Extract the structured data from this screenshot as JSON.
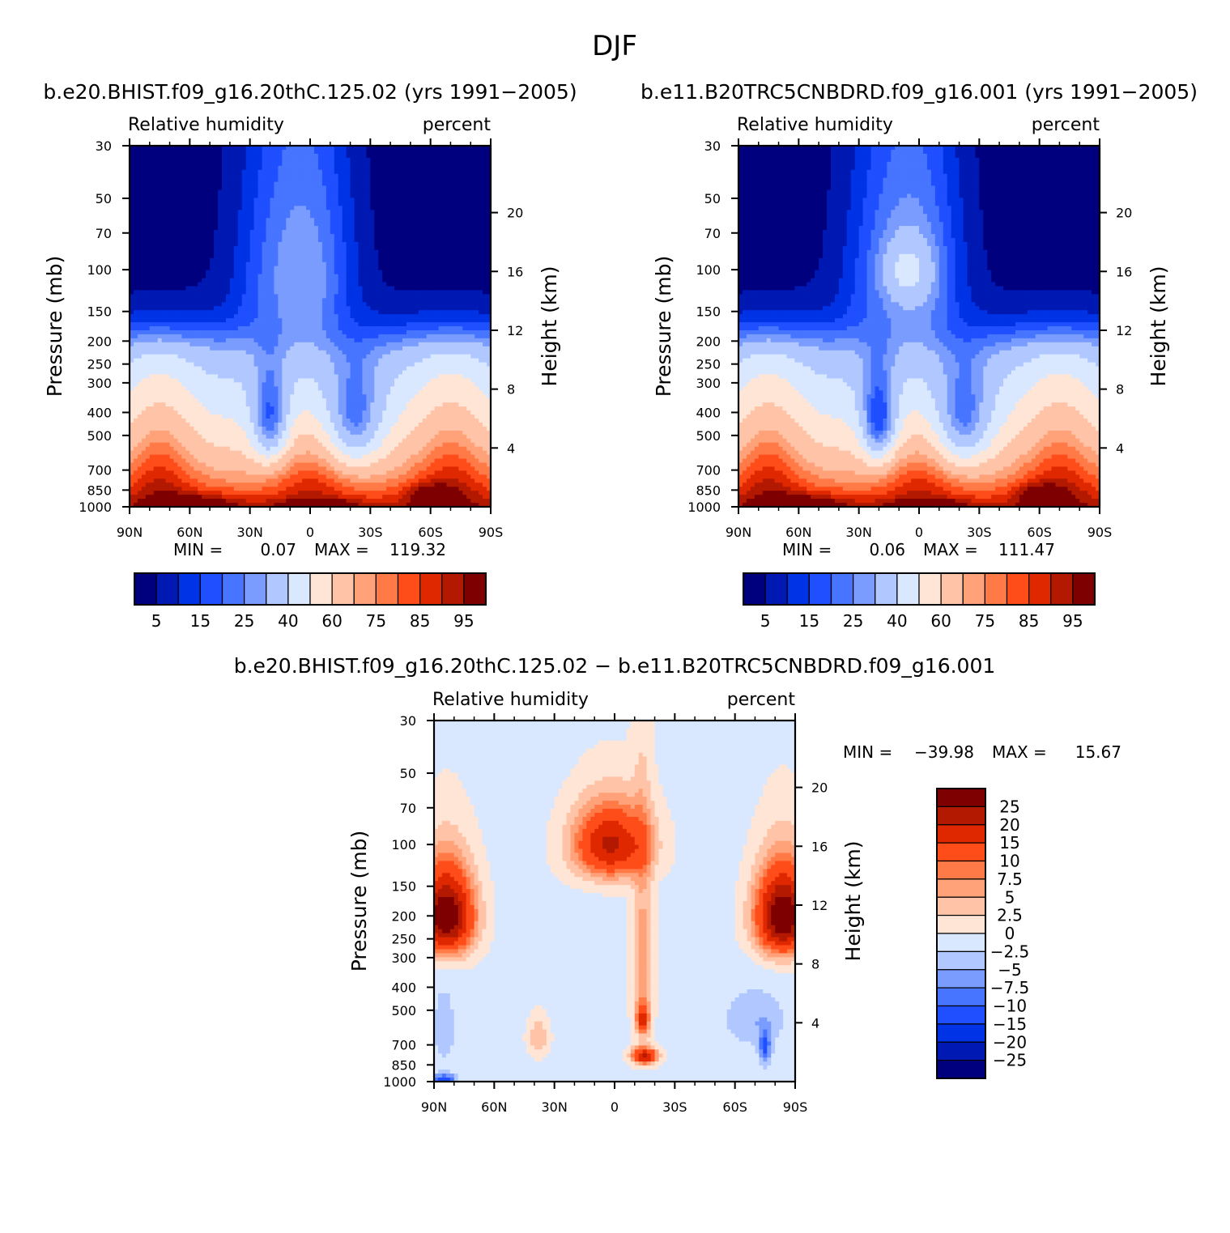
{
  "page_title": "DJF",
  "chart_data": [
    {
      "type": "heatmap",
      "title": "b.e20.BHIST.f09_g16.20thC.125.02 (yrs 1991−2005)",
      "variable": "Relative humidity",
      "units": "percent",
      "xlabel": "",
      "ylabel": "Pressure (mb)",
      "y2label": "Height (km)",
      "x_ticks": [
        "90N",
        "60N",
        "30N",
        "0",
        "30S",
        "60S",
        "90S"
      ],
      "x_values": [
        90,
        60,
        30,
        0,
        -30,
        -60,
        -90
      ],
      "y_ticks": [
        "30",
        "50",
        "70",
        "100",
        "150",
        "200",
        "250",
        "300",
        "400",
        "500",
        "700",
        "850",
        "1000"
      ],
      "y_values": [
        30,
        50,
        70,
        100,
        150,
        200,
        250,
        300,
        400,
        500,
        700,
        850,
        1000
      ],
      "y2_ticks": [
        "20",
        "16",
        "12",
        "8",
        "4"
      ],
      "y2_values": [
        20,
        16,
        12,
        8,
        4
      ],
      "min_label": "MIN =",
      "min_value": "0.07",
      "max_label": "MAX =",
      "max_value": "119.32",
      "colorbar_labels": [
        "5",
        "15",
        "25",
        "40",
        "60",
        "75",
        "85",
        "95"
      ],
      "colorbar_levels": [
        5,
        10,
        15,
        20,
        25,
        30,
        40,
        50,
        60,
        70,
        75,
        80,
        85,
        90,
        95
      ],
      "colorbar_colors": [
        "#00007f",
        "#0019b2",
        "#0033e5",
        "#1f4fff",
        "#4775ff",
        "#7a9cff",
        "#b0c8ff",
        "#d9e8ff",
        "#ffe5d6",
        "#ffc4a8",
        "#ffa27a",
        "#ff7a47",
        "#ff4d1a",
        "#e02800",
        "#b21900",
        "#7f0000"
      ]
    },
    {
      "type": "heatmap",
      "title": "b.e11.B20TRC5CNBDRD.f09_g16.001 (yrs 1991−2005)",
      "variable": "Relative humidity",
      "units": "percent",
      "xlabel": "",
      "ylabel": "Pressure (mb)",
      "y2label": "Height (km)",
      "x_ticks": [
        "90N",
        "60N",
        "30N",
        "0",
        "30S",
        "60S",
        "90S"
      ],
      "x_values": [
        90,
        60,
        30,
        0,
        -30,
        -60,
        -90
      ],
      "y_ticks": [
        "30",
        "50",
        "70",
        "100",
        "150",
        "200",
        "250",
        "300",
        "400",
        "500",
        "700",
        "850",
        "1000"
      ],
      "y_values": [
        30,
        50,
        70,
        100,
        150,
        200,
        250,
        300,
        400,
        500,
        700,
        850,
        1000
      ],
      "y2_ticks": [
        "20",
        "16",
        "12",
        "8",
        "4"
      ],
      "y2_values": [
        20,
        16,
        12,
        8,
        4
      ],
      "min_label": "MIN =",
      "min_value": "0.06",
      "max_label": "MAX =",
      "max_value": "111.47",
      "colorbar_labels": [
        "5",
        "15",
        "25",
        "40",
        "60",
        "75",
        "85",
        "95"
      ],
      "colorbar_levels": [
        5,
        10,
        15,
        20,
        25,
        30,
        40,
        50,
        60,
        70,
        75,
        80,
        85,
        90,
        95
      ],
      "colorbar_colors": [
        "#00007f",
        "#0019b2",
        "#0033e5",
        "#1f4fff",
        "#4775ff",
        "#7a9cff",
        "#b0c8ff",
        "#d9e8ff",
        "#ffe5d6",
        "#ffc4a8",
        "#ffa27a",
        "#ff7a47",
        "#ff4d1a",
        "#e02800",
        "#b21900",
        "#7f0000"
      ]
    },
    {
      "type": "heatmap",
      "title": "b.e20.BHIST.f09_g16.20thC.125.02 − b.e11.B20TRC5CNBDRD.f09_g16.001",
      "variable": "Relative humidity",
      "units": "percent",
      "xlabel": "",
      "ylabel": "Pressure (mb)",
      "y2label": "Height (km)",
      "x_ticks": [
        "90N",
        "60N",
        "30N",
        "0",
        "30S",
        "60S",
        "90S"
      ],
      "x_values": [
        90,
        60,
        30,
        0,
        -30,
        -60,
        -90
      ],
      "y_ticks": [
        "30",
        "50",
        "70",
        "100",
        "150",
        "200",
        "250",
        "300",
        "400",
        "500",
        "700",
        "850",
        "1000"
      ],
      "y_values": [
        30,
        50,
        70,
        100,
        150,
        200,
        250,
        300,
        400,
        500,
        700,
        850,
        1000
      ],
      "y2_ticks": [
        "20",
        "16",
        "12",
        "8",
        "4"
      ],
      "y2_values": [
        20,
        16,
        12,
        8,
        4
      ],
      "min_label": "MIN =",
      "min_value": "−39.98",
      "max_label": "MAX =",
      "max_value": "15.67",
      "colorbar_labels": [
        "25",
        "20",
        "15",
        "10",
        "7.5",
        "5",
        "2.5",
        "0",
        "−2.5",
        "−5",
        "−7.5",
        "−10",
        "−15",
        "−20",
        "−25"
      ],
      "colorbar_levels": [
        25,
        20,
        15,
        10,
        7.5,
        5,
        2.5,
        0,
        -2.5,
        -5,
        -7.5,
        -10,
        -15,
        -20,
        -25
      ],
      "colorbar_colors": [
        "#7f0000",
        "#b21900",
        "#e02800",
        "#ff4d1a",
        "#ff7a47",
        "#ffa27a",
        "#ffc4a8",
        "#ffe5d6",
        "#d9e8ff",
        "#b0c8ff",
        "#7a9cff",
        "#4775ff",
        "#1f4fff",
        "#0033e5",
        "#0019b2",
        "#00007f"
      ]
    }
  ]
}
